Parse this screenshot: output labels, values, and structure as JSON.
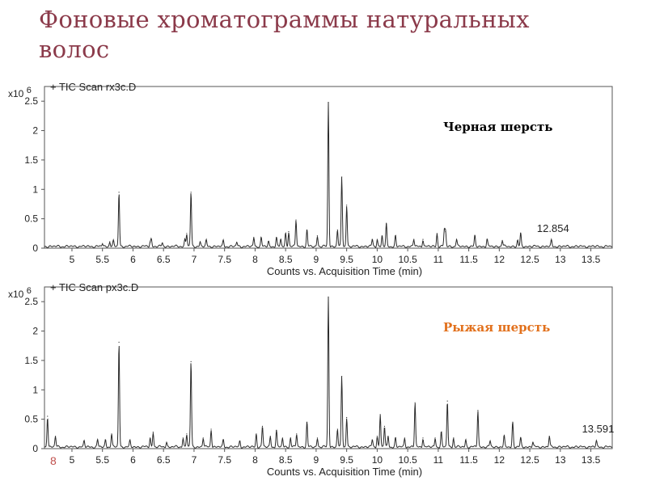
{
  "slide": {
    "title_line1": "Фоновые хроматограммы натуральных",
    "title_line2": "волос",
    "page_number": "8"
  },
  "chart_data": [
    {
      "type": "line",
      "scan_label": "+ TIC Scan rx3c.D",
      "multiplier": "x10",
      "multiplier_exp": "6",
      "xlabel": "Counts vs. Acquisition Time (min)",
      "annotation": "Черная шерсть",
      "annotation_color": "#000000",
      "rt_label": "12.854",
      "rt_label_x": 12.854,
      "x_ticks": [
        "5",
        "5.5",
        "6",
        "6.5",
        "7",
        "7.5",
        "8",
        "8.5",
        "9",
        "9.5",
        "10",
        "10.5",
        "11",
        "11.5",
        "12",
        "12.5",
        "13",
        "13.5"
      ],
      "y_ticks": [
        "0",
        "0.5",
        "1",
        "1.5",
        "2",
        "2.5"
      ],
      "xlim": [
        4.55,
        13.85
      ],
      "ylim": [
        0,
        2.75
      ],
      "baseline": 0.03,
      "peaks": [
        [
          5.5,
          0.05
        ],
        [
          5.62,
          0.08
        ],
        [
          5.68,
          0.09
        ],
        [
          5.77,
          0.92
        ],
        [
          6.28,
          0.07
        ],
        [
          6.3,
          0.12
        ],
        [
          6.48,
          0.06
        ],
        [
          6.85,
          0.12
        ],
        [
          6.88,
          0.22
        ],
        [
          6.95,
          0.92
        ],
        [
          7.1,
          0.08
        ],
        [
          7.2,
          0.1
        ],
        [
          7.48,
          0.1
        ],
        [
          7.7,
          0.07
        ],
        [
          7.98,
          0.15
        ],
        [
          8.1,
          0.15
        ],
        [
          8.22,
          0.08
        ],
        [
          8.35,
          0.15
        ],
        [
          8.42,
          0.12
        ],
        [
          8.5,
          0.22
        ],
        [
          8.55,
          0.25
        ],
        [
          8.67,
          0.45
        ],
        [
          8.85,
          0.28
        ],
        [
          9.02,
          0.18
        ],
        [
          9.2,
          2.45
        ],
        [
          9.35,
          0.28
        ],
        [
          9.42,
          1.18
        ],
        [
          9.5,
          0.7
        ],
        [
          9.92,
          0.12
        ],
        [
          10.0,
          0.12
        ],
        [
          10.08,
          0.18
        ],
        [
          10.15,
          0.38
        ],
        [
          10.3,
          0.18
        ],
        [
          10.6,
          0.12
        ],
        [
          10.75,
          0.12
        ],
        [
          10.98,
          0.22
        ],
        [
          11.1,
          0.28
        ],
        [
          11.12,
          0.25
        ],
        [
          11.3,
          0.12
        ],
        [
          11.6,
          0.18
        ],
        [
          11.8,
          0.12
        ],
        [
          12.05,
          0.1
        ],
        [
          12.3,
          0.1
        ],
        [
          12.35,
          0.22
        ],
        [
          12.854,
          0.1
        ]
      ]
    },
    {
      "type": "line",
      "scan_label": "+ TIC Scan px3c.D",
      "multiplier": "x10",
      "multiplier_exp": "6",
      "xlabel": "Counts vs. Acquisition Time (min)",
      "annotation": "Рыжая шерсть",
      "annotation_color": "#e2711d",
      "rt_label": "13.591",
      "rt_label_x": 13.591,
      "x_ticks": [
        "5",
        "5.5",
        "6",
        "6.5",
        "7",
        "7.5",
        "8",
        "8.5",
        "9",
        "9.5",
        "10",
        "10.5",
        "11",
        "11.5",
        "12",
        "12.5",
        "13",
        "13.5"
      ],
      "y_ticks": [
        "0",
        "0.5",
        "1",
        "1.5",
        "2",
        "2.5"
      ],
      "xlim": [
        4.55,
        13.85
      ],
      "ylim": [
        0,
        2.75
      ],
      "baseline": 0.03,
      "peaks": [
        [
          4.6,
          0.52
        ],
        [
          4.73,
          0.18
        ],
        [
          5.2,
          0.1
        ],
        [
          5.42,
          0.12
        ],
        [
          5.55,
          0.12
        ],
        [
          5.65,
          0.22
        ],
        [
          5.77,
          1.78
        ],
        [
          5.95,
          0.1
        ],
        [
          6.28,
          0.15
        ],
        [
          6.33,
          0.25
        ],
        [
          6.55,
          0.08
        ],
        [
          6.82,
          0.15
        ],
        [
          6.88,
          0.22
        ],
        [
          6.95,
          1.45
        ],
        [
          7.15,
          0.15
        ],
        [
          7.28,
          0.3
        ],
        [
          7.48,
          0.12
        ],
        [
          7.75,
          0.1
        ],
        [
          8.02,
          0.22
        ],
        [
          8.12,
          0.35
        ],
        [
          8.25,
          0.18
        ],
        [
          8.35,
          0.28
        ],
        [
          8.45,
          0.15
        ],
        [
          8.58,
          0.15
        ],
        [
          8.68,
          0.22
        ],
        [
          8.85,
          0.42
        ],
        [
          9.02,
          0.15
        ],
        [
          9.2,
          2.55
        ],
        [
          9.35,
          0.3
        ],
        [
          9.42,
          1.2
        ],
        [
          9.5,
          0.5
        ],
        [
          9.92,
          0.12
        ],
        [
          10.0,
          0.18
        ],
        [
          10.05,
          0.55
        ],
        [
          10.12,
          0.35
        ],
        [
          10.18,
          0.18
        ],
        [
          10.3,
          0.15
        ],
        [
          10.45,
          0.15
        ],
        [
          10.62,
          0.75
        ],
        [
          10.75,
          0.15
        ],
        [
          10.95,
          0.15
        ],
        [
          11.05,
          0.25
        ],
        [
          11.15,
          0.78
        ],
        [
          11.25,
          0.15
        ],
        [
          11.45,
          0.12
        ],
        [
          11.65,
          0.62
        ],
        [
          11.85,
          0.1
        ],
        [
          12.08,
          0.18
        ],
        [
          12.22,
          0.42
        ],
        [
          12.35,
          0.15
        ],
        [
          12.55,
          0.08
        ],
        [
          12.82,
          0.18
        ],
        [
          13.591,
          0.1
        ]
      ]
    }
  ]
}
